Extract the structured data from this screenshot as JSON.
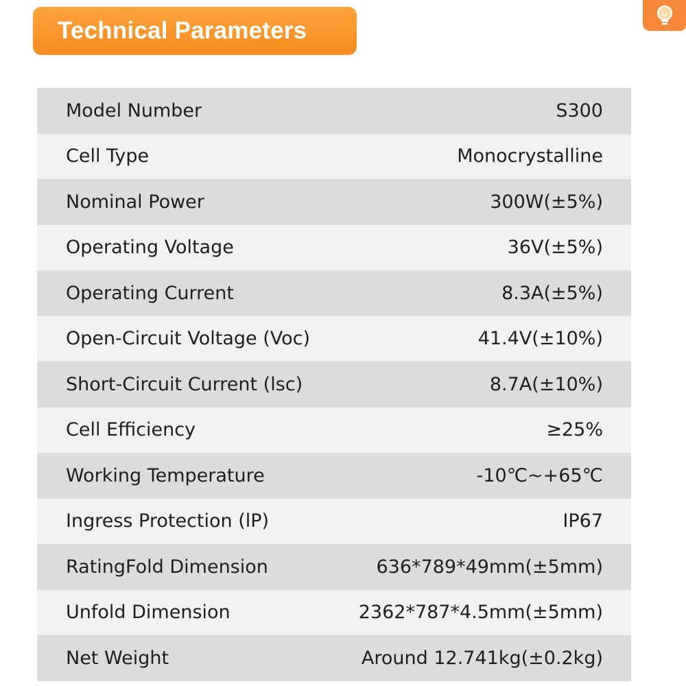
{
  "header": {
    "title": "Technical Parameters",
    "accent_color": "#f68b1f"
  },
  "corner_button": {
    "icon": "lightbulb-icon"
  },
  "table": {
    "rows": [
      {
        "label": "Model Number",
        "value": "S300"
      },
      {
        "label": "Cell Type",
        "value": "Monocrystalline"
      },
      {
        "label": "Nominal Power",
        "value": "300W(±5%)"
      },
      {
        "label": "Operating Voltage",
        "value": "36V(±5%)"
      },
      {
        "label": "Operating Current",
        "value": "8.3A(±5%)"
      },
      {
        "label": "Open-Circuit Voltage (Voc)",
        "value": "41.4V(±10%)"
      },
      {
        "label": "Short-Circuit Current (lsc)",
        "value": "8.7A(±10%)"
      },
      {
        "label": "Cell Efficiency",
        "value": "≥25%"
      },
      {
        "label": "Working Temperature",
        "value": "-10℃~+65℃"
      },
      {
        "label": "Ingress Protection (lP)",
        "value": "IP67"
      },
      {
        "label": "RatingFold Dimension",
        "value": "636*789*49mm(±5mm)"
      },
      {
        "label": "Unfold Dimension",
        "value": "2362*787*4.5mm(±5mm)"
      },
      {
        "label": "Net Weight",
        "value": "Around 12.741kg(±0.2kg)"
      }
    ]
  }
}
